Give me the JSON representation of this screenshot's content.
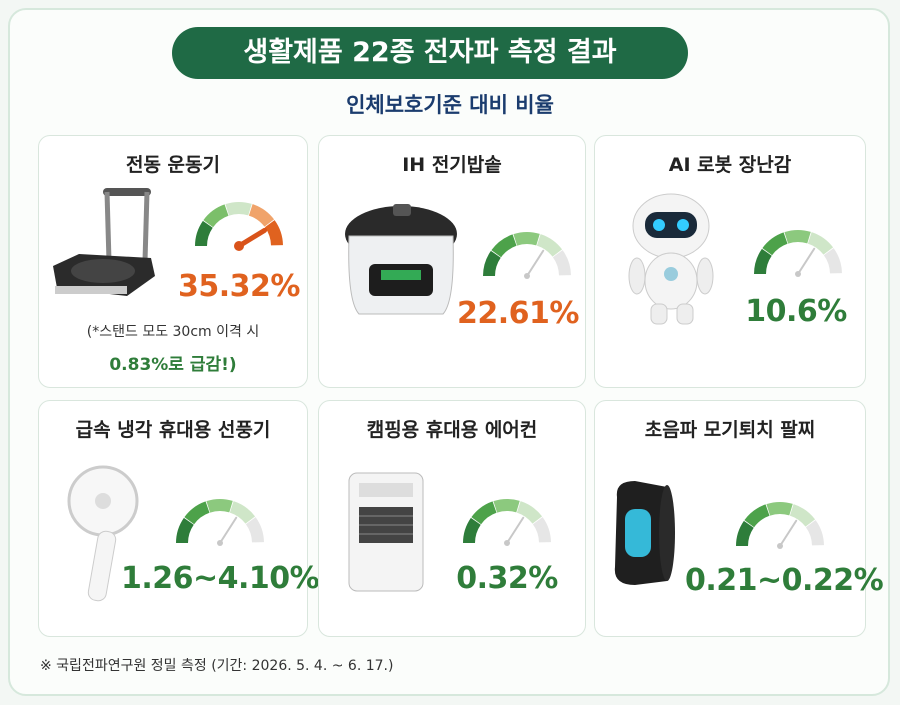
{
  "header": {
    "title": "생활제품 22종 전자파 측정 결과",
    "subtitle": "인체보호기준 대비 비율"
  },
  "cards": [
    {
      "name": "전동 운동기",
      "value": "35.32%",
      "note": "(*스탠드 모도 30cm 이격 시",
      "note2": "0.83%로 급감!)"
    },
    {
      "name": "IH 전기밥솥",
      "value": "22.61%"
    },
    {
      "name": "AI 로봇 장난감",
      "value": "10.6%"
    },
    {
      "name": "급속 냉각 휴대용 선풍기",
      "value": "1.26~4.10%"
    },
    {
      "name": "캠핑용 휴대용 에어컨",
      "value": "0.32%"
    },
    {
      "name": "초음파 모기퇴치 팔찌",
      "value": "0.21~0.22%"
    }
  ],
  "footnote": "※ 국립전파연구원 정밀 측정 (기간: 2026. 5. 4. ~ 6. 17.)"
}
